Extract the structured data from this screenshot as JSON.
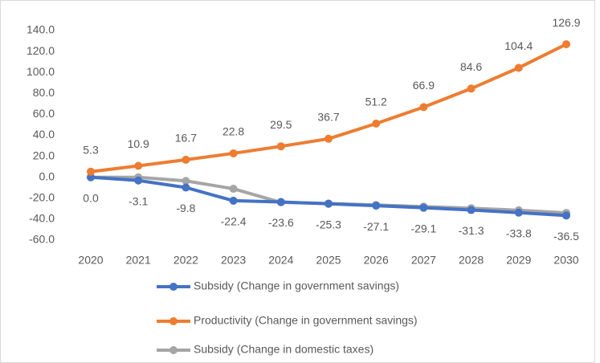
{
  "chart_data": {
    "type": "line",
    "categories": [
      "2020",
      "2021",
      "2022",
      "2023",
      "2024",
      "2025",
      "2026",
      "2027",
      "2028",
      "2029",
      "2030"
    ],
    "series": [
      {
        "name": "Subsidy (Change in government savings)",
        "color": "#4472c4",
        "values": [
          0.0,
          -3.1,
          -9.8,
          -22.4,
          -23.6,
          -25.3,
          -27.1,
          -29.1,
          -31.3,
          -33.8,
          -36.5
        ],
        "value_labels": [
          "0.0",
          "-3.1",
          "-9.8",
          "-22.4",
          "-23.6",
          "-25.3",
          "-27.1",
          "-29.1",
          "-31.3",
          "-33.8",
          "-36.5"
        ]
      },
      {
        "name": "Productivity (Change in government savings)",
        "color": "#ed7d31",
        "values": [
          5.3,
          10.9,
          16.7,
          22.8,
          29.5,
          36.7,
          51.2,
          66.9,
          84.6,
          104.4,
          126.9
        ],
        "value_labels": [
          "5.3",
          "10.9",
          "16.7",
          "22.8",
          "29.5",
          "36.7",
          "51.2",
          "66.9",
          "84.6",
          "104.4",
          "126.9"
        ]
      },
      {
        "name": "Subsidy (Change in domestic taxes)",
        "color": "#a5a5a5",
        "values": [
          0,
          0,
          -3.5,
          -11,
          -24,
          -25,
          -26.5,
          -28,
          -29.5,
          -31.5,
          -34
        ]
      }
    ],
    "ylim": [
      -60,
      140
    ],
    "yticks": [
      {
        "value": -60,
        "label": "-60.0"
      },
      {
        "value": -40,
        "label": "-40.0"
      },
      {
        "value": -20,
        "label": "-20.0"
      },
      {
        "value": 0,
        "label": "0.0"
      },
      {
        "value": 20,
        "label": "20.0"
      },
      {
        "value": 40,
        "label": "40.0"
      },
      {
        "value": 60,
        "label": "60.0"
      },
      {
        "value": 80,
        "label": "80.0"
      },
      {
        "value": 100,
        "label": "100.0"
      },
      {
        "value": 120,
        "label": "120.0"
      },
      {
        "value": 140,
        "label": "140.0"
      }
    ],
    "grid": false,
    "legend": "bottom"
  }
}
